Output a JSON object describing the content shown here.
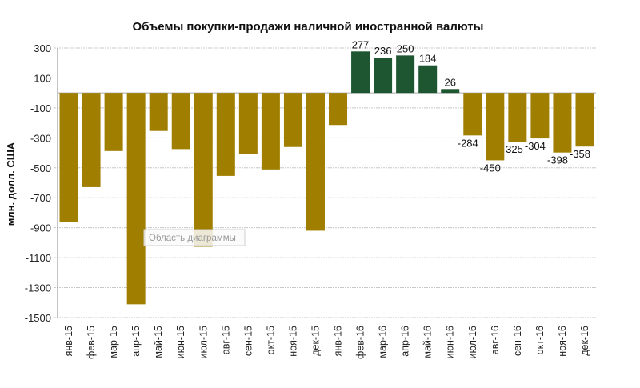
{
  "chart_data": {
    "type": "bar",
    "title": "Объемы покупки-продажи наличной иностранной валюты",
    "xlabel": "",
    "ylabel": "млн. долл. США",
    "ylim": [
      -1500,
      300
    ],
    "yticks": [
      300,
      100,
      -100,
      -300,
      -500,
      -700,
      -900,
      -1100,
      -1300,
      -1500
    ],
    "grid": true,
    "categories": [
      "янв-15",
      "фев-15",
      "мар-15",
      "апр-15",
      "май-15",
      "июн-15",
      "июл-15",
      "авг-15",
      "сен-15",
      "окт-15",
      "ноя-15",
      "дек-15",
      "янв-16",
      "фев-16",
      "мар-16",
      "апр-16",
      "май-16",
      "июн-16",
      "июл-16",
      "авг-16",
      "сен-16",
      "окт-16",
      "ноя-16",
      "дек-16"
    ],
    "values": [
      -861,
      -629,
      -388,
      -1411,
      -254,
      -375,
      -1027,
      -554,
      -409,
      -511,
      -361,
      -920,
      -214,
      277,
      236,
      250,
      184,
      26,
      -284,
      -450,
      -325,
      -304,
      -398,
      -358
    ],
    "data_labels": [
      "",
      "",
      "",
      "",
      "",
      "",
      "",
      "",
      "",
      "",
      "",
      "",
      "",
      "277",
      "236",
      "250",
      "184",
      "26",
      "-284",
      "-450",
      "-325",
      "-304",
      "-398",
      "-358"
    ],
    "colors": {
      "negative": "#A07E00",
      "positive": "#1E5631"
    }
  },
  "tooltip": "Область диаграммы"
}
